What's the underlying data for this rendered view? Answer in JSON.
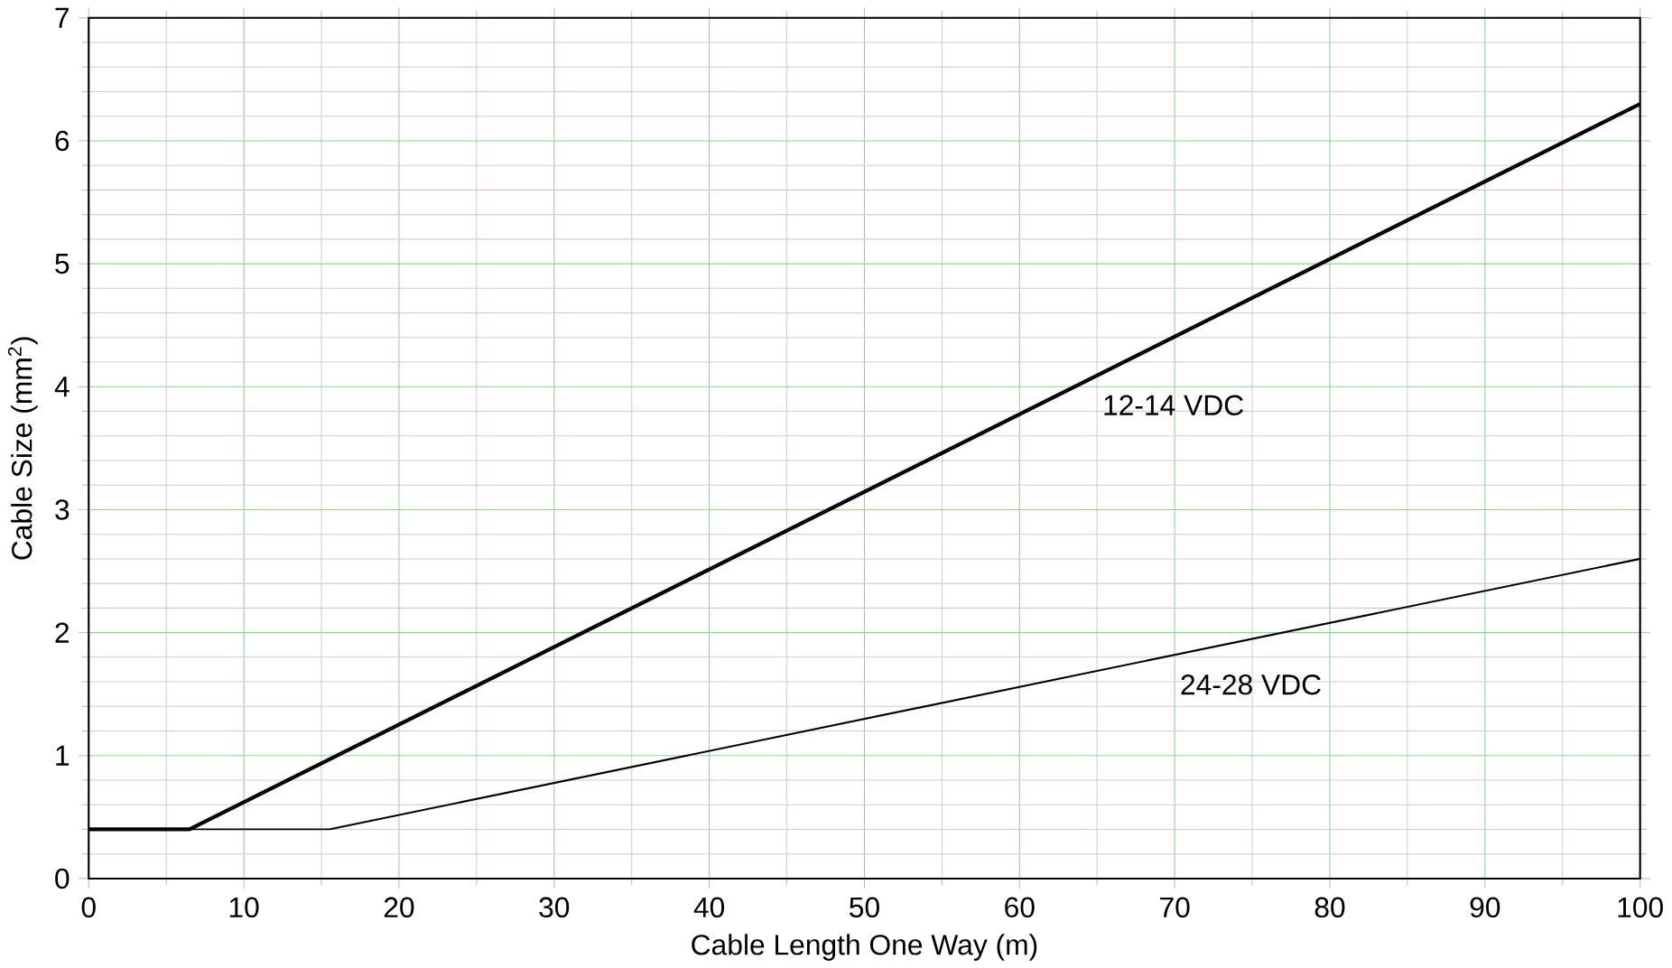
{
  "chart_data": {
    "type": "line",
    "xlabel": "Cable Length One Way (m)",
    "ylabel": "Cable Size (mm$^{2}$)",
    "series": [
      {
        "name": "12-14 VDC",
        "color": "#000000",
        "x": [
          0,
          6.5,
          100
        ],
        "values": [
          0.4,
          0.4,
          6.3
        ]
      },
      {
        "name": "24-28 VDC",
        "color": "#000000",
        "x": [
          0,
          15.5,
          100
        ],
        "values": [
          0.4,
          0.4,
          2.6
        ]
      }
    ],
    "xlim": [
      0,
      100
    ],
    "ylim": [
      0,
      7
    ],
    "xticks": [
      0,
      10,
      20,
      30,
      40,
      50,
      60,
      70,
      80,
      90,
      100
    ],
    "yticks": [
      0,
      1,
      2,
      3,
      4,
      5,
      6,
      7
    ],
    "grid": true,
    "marker": "none",
    "line_style": "solid"
  }
}
